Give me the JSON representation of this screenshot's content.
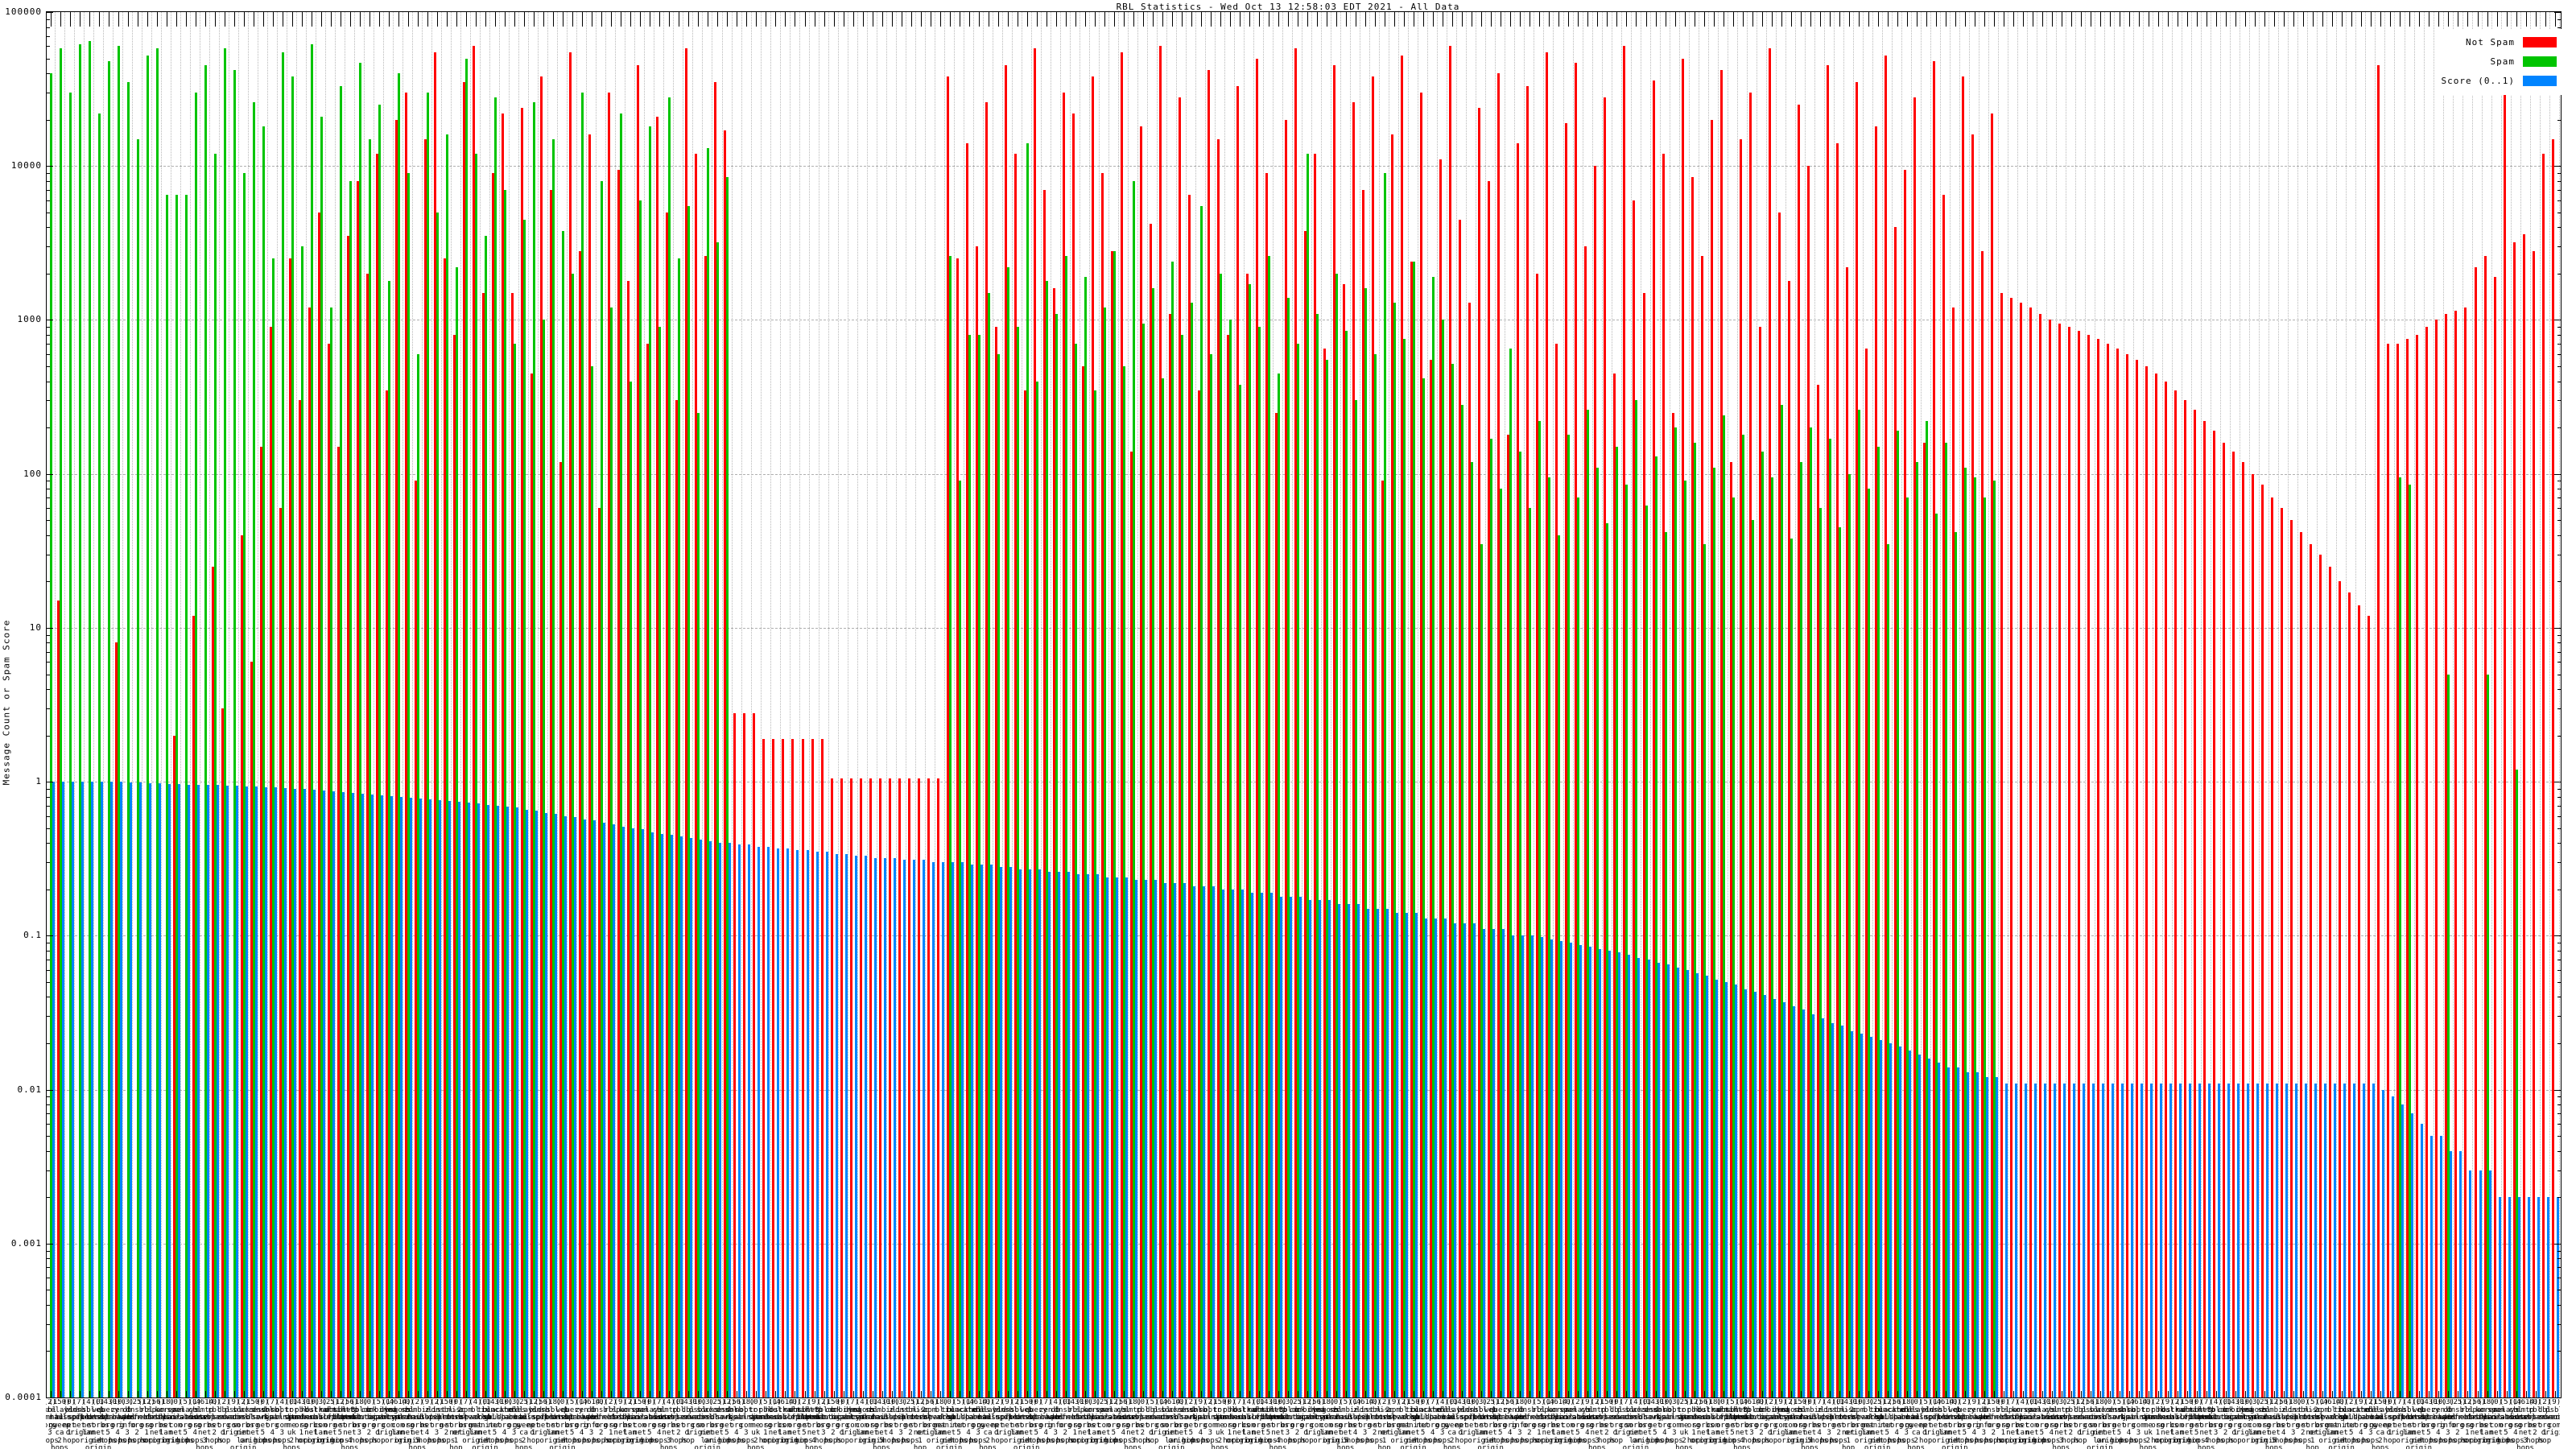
{
  "title": "RBL Statistics - Wed Oct 13 12:58:03 EDT 2021 - All Data",
  "legend": {
    "position": "top-right",
    "entries": [
      {
        "label": "Not Spam",
        "color": "#ff0000"
      },
      {
        "label": "Spam",
        "color": "#00c400"
      },
      {
        "label": "Score (0..1)",
        "color": "#0084ff"
      }
    ]
  },
  "axis": {
    "ylabel": "Message Count or Spam Score",
    "yticks": [
      "100000",
      "10000",
      "1000",
      "100",
      "10",
      "1",
      "0.1",
      "0.01",
      "0.001",
      "0.0001"
    ],
    "ymin": 0.0001,
    "ymax": 100000,
    "yscale": "log",
    "grid": "dotted"
  },
  "chart_data": {
    "type": "bar",
    "title": "RBL Statistics - Wed Oct 13 12:58:03 EDT 2021 - All Data",
    "xlabel": "",
    "ylabel": "Message Count or Spam Score",
    "ylog": true,
    "ylim": [
      0.0001,
      100000
    ],
    "n_groups": 260,
    "legend_position": "top-right",
    "grid": "dotted",
    "series": [
      {
        "name": "Not Spam",
        "color": "#ff0000",
        "values": [
          0,
          15,
          0,
          0,
          0,
          0,
          0,
          8,
          0,
          0,
          0,
          0,
          0,
          2,
          0,
          12,
          0,
          25,
          3,
          0,
          40,
          6,
          150,
          900,
          60,
          2500,
          300,
          1200,
          5000,
          700,
          150,
          3500,
          8000,
          2000,
          12000,
          350,
          20000,
          30000,
          90,
          15000,
          55000,
          2500,
          800,
          35000,
          60000,
          1500,
          9000,
          22000,
          1500,
          24000,
          450,
          38000,
          7000,
          120,
          55000,
          2800,
          16000,
          60,
          30000,
          9500,
          1800,
          45000,
          700,
          21000,
          5000,
          300,
          58000,
          12000,
          2600,
          35000,
          17000,
          2.8,
          2.8,
          2.8,
          1.9,
          1.9,
          1.9,
          1.9,
          1.9,
          1.9,
          1.9,
          1.05,
          1.05,
          1.05,
          1.05,
          1.05,
          1.05,
          1.05,
          1.05,
          1.05,
          1.05,
          1.05,
          1.05,
          38000,
          2500,
          14000,
          3000,
          26000,
          900,
          45000,
          12000,
          350,
          58000,
          7000,
          1600,
          30000,
          22000,
          500,
          38000,
          9000,
          2800,
          55000,
          140,
          18000,
          4200,
          60000,
          1100,
          28000,
          6500,
          350,
          42000,
          15000,
          800,
          33000,
          2000,
          50000,
          9000,
          250,
          20000,
          58000,
          3800,
          12000,
          650,
          45000,
          1700,
          26000,
          7000,
          38000,
          90,
          16000,
          52000,
          2400,
          30000,
          550,
          11000,
          60000,
          4500,
          1300,
          24000,
          8000,
          40000,
          180,
          14000,
          33000,
          2000,
          55000,
          700,
          19000,
          47000,
          3000,
          10000,
          28000,
          450,
          60000,
          6000,
          1500,
          36000,
          12000,
          250,
          50000,
          8500,
          2600,
          20000,
          42000,
          120,
          15000,
          30000,
          900,
          58000,
          5000,
          1800,
          25000,
          10000,
          380,
          45000,
          14000,
          2200,
          35000,
          650,
          18000,
          52000,
          4000,
          9500,
          28000,
          160,
          48000,
          6500,
          1200,
          38000,
          16000,
          2800,
          22000,
          1500,
          1400,
          1300,
          1200,
          1100,
          1000,
          950,
          900,
          850,
          800,
          750,
          700,
          650,
          600,
          550,
          500,
          450,
          400,
          350,
          300,
          260,
          220,
          190,
          160,
          140,
          120,
          100,
          85,
          70,
          60,
          50,
          42,
          35,
          30,
          25,
          20,
          17,
          14,
          12,
          45000,
          700,
          700,
          750,
          800,
          900,
          1000,
          1100,
          1150,
          1200,
          2200,
          2600,
          1900,
          52000,
          3200,
          3600,
          2800,
          12000,
          15000
        ]
      },
      {
        "name": "Spam",
        "color": "#00c400",
        "values": [
          40000,
          58000,
          30000,
          62000,
          65000,
          22000,
          48000,
          60000,
          35000,
          15000,
          52000,
          58000,
          6500,
          6500,
          6500,
          30000,
          45000,
          12000,
          58000,
          42000,
          9000,
          26000,
          18000,
          2500,
          55000,
          38000,
          3000,
          62000,
          21000,
          1200,
          33000,
          8000,
          47000,
          15000,
          25000,
          1800,
          40000,
          9000,
          600,
          30000,
          5000,
          16000,
          2200,
          50000,
          12000,
          3500,
          28000,
          7000,
          700,
          4500,
          26000,
          1000,
          15000,
          3800,
          2000,
          30000,
          500,
          8000,
          1200,
          22000,
          400,
          6000,
          18000,
          900,
          28000,
          2500,
          5500,
          250,
          13000,
          3200,
          8500,
          0,
          0,
          0,
          0,
          0,
          0,
          0,
          0,
          0,
          0,
          0,
          0,
          0,
          0,
          0,
          0,
          0,
          0,
          0,
          0,
          0,
          0,
          2600,
          90,
          800,
          800,
          1500,
          600,
          2200,
          900,
          14000,
          400,
          1800,
          1100,
          2600,
          700,
          1900,
          350,
          1200,
          2800,
          500,
          8000,
          950,
          1600,
          420,
          2400,
          800,
          1300,
          5500,
          600,
          2000,
          1000,
          380,
          1700,
          900,
          2600,
          450,
          1400,
          700,
          12000,
          1100,
          550,
          2000,
          850,
          300,
          1600,
          600,
          9000,
          1300,
          750,
          2400,
          420,
          1900,
          1000,
          520,
          280,
          120,
          35,
          170,
          80,
          650,
          140,
          60,
          220,
          95,
          40,
          180,
          70,
          260,
          110,
          48,
          150,
          85,
          300,
          62,
          130,
          42,
          200,
          90,
          160,
          35,
          110,
          240,
          70,
          180,
          50,
          140,
          95,
          280,
          38,
          120,
          200,
          60,
          170,
          45,
          100,
          260,
          80,
          150,
          35,
          190,
          70,
          120,
          220,
          55,
          160,
          42,
          110,
          95,
          70,
          90,
          0,
          0,
          0,
          0,
          0,
          0,
          0,
          0,
          0,
          0,
          0,
          0,
          0,
          0,
          0,
          0,
          0,
          0,
          0,
          0,
          0,
          0,
          0,
          0,
          0,
          0,
          0,
          0,
          0,
          0,
          0,
          0,
          0,
          0,
          0,
          0,
          0,
          0,
          0,
          0,
          0,
          95,
          85,
          0,
          0,
          0,
          5,
          0,
          0,
          0,
          5,
          0,
          0,
          1.2,
          0,
          0,
          0,
          0
        ]
      },
      {
        "name": "Score (0..1)",
        "color": "#0084ff",
        "values": [
          1,
          1,
          1,
          1,
          1,
          1,
          1,
          1,
          0.99,
          0.99,
          0.98,
          0.98,
          0.97,
          0.97,
          0.96,
          0.96,
          0.95,
          0.95,
          0.94,
          0.94,
          0.93,
          0.93,
          0.92,
          0.92,
          0.91,
          0.9,
          0.9,
          0.89,
          0.88,
          0.87,
          0.86,
          0.85,
          0.84,
          0.83,
          0.82,
          0.81,
          0.8,
          0.79,
          0.78,
          0.77,
          0.76,
          0.75,
          0.74,
          0.73,
          0.72,
          0.71,
          0.7,
          0.69,
          0.68,
          0.66,
          0.65,
          0.63,
          0.62,
          0.6,
          0.59,
          0.57,
          0.56,
          0.54,
          0.53,
          0.51,
          0.5,
          0.49,
          0.47,
          0.46,
          0.45,
          0.44,
          0.43,
          0.42,
          0.41,
          0.4,
          0.4,
          0.39,
          0.39,
          0.38,
          0.38,
          0.37,
          0.37,
          0.36,
          0.36,
          0.35,
          0.35,
          0.34,
          0.34,
          0.33,
          0.33,
          0.32,
          0.32,
          0.32,
          0.31,
          0.31,
          0.31,
          0.3,
          0.3,
          0.3,
          0.3,
          0.29,
          0.29,
          0.29,
          0.28,
          0.28,
          0.27,
          0.27,
          0.27,
          0.26,
          0.26,
          0.26,
          0.25,
          0.25,
          0.25,
          0.24,
          0.24,
          0.24,
          0.23,
          0.23,
          0.23,
          0.22,
          0.22,
          0.22,
          0.21,
          0.21,
          0.21,
          0.2,
          0.2,
          0.2,
          0.19,
          0.19,
          0.19,
          0.18,
          0.18,
          0.18,
          0.17,
          0.17,
          0.17,
          0.16,
          0.16,
          0.16,
          0.15,
          0.15,
          0.15,
          0.14,
          0.14,
          0.14,
          0.13,
          0.13,
          0.13,
          0.12,
          0.12,
          0.12,
          0.11,
          0.11,
          0.11,
          0.1,
          0.1,
          0.1,
          0.098,
          0.095,
          0.092,
          0.09,
          0.087,
          0.085,
          0.082,
          0.08,
          0.078,
          0.075,
          0.072,
          0.07,
          0.067,
          0.065,
          0.062,
          0.06,
          0.057,
          0.055,
          0.052,
          0.05,
          0.048,
          0.045,
          0.043,
          0.041,
          0.039,
          0.037,
          0.035,
          0.033,
          0.031,
          0.029,
          0.027,
          0.026,
          0.024,
          0.023,
          0.022,
          0.021,
          0.02,
          0.019,
          0.018,
          0.017,
          0.016,
          0.015,
          0.014,
          0.014,
          0.013,
          0.013,
          0.012,
          0.012,
          0.011,
          0.011,
          0.011,
          0.011,
          0.011,
          0.011,
          0.011,
          0.011,
          0.011,
          0.011,
          0.011,
          0.011,
          0.011,
          0.011,
          0.011,
          0.011,
          0.011,
          0.011,
          0.011,
          0.011,
          0.011,
          0.011,
          0.011,
          0.011,
          0.011,
          0.011,
          0.011,
          0.011,
          0.011,
          0.011,
          0.011,
          0.011,
          0.011,
          0.011,
          0.011,
          0.011,
          0.011,
          0.011,
          0.011,
          0.01,
          0.009,
          0.008,
          0.007,
          0.006,
          0.005,
          0.005,
          0.004,
          0.004,
          0.003,
          0.003,
          0.003,
          0.002,
          0.002,
          0.002,
          0.002,
          0.002,
          0.002,
          0.002
        ]
      }
    ],
    "xlabel_name_pool": [
      "zen.spamhaus.org",
      "bl.spamcop.net",
      "b.barracudacentral.org",
      "dnsbl.sorbs.net",
      "spam.dnsbl.sorbs.net",
      "xbl.spamhaus.org",
      "sbl.spamhaus.org",
      "pbl.spamhaus.org",
      "cbl.abuseat.org",
      "dnsbl-1.uceprotect.net",
      "dnsbl-2.uceprotect.net",
      "dnsbl-3.uceprotect.net",
      "psbl.surriel.com",
      "db.wpbl.info",
      "ix.dnsbl.manitu.net",
      "combined.njabl.org",
      "dnsbl.njabl.org",
      "korea.services.net",
      "relays.bl.gweep.ca",
      "zombie.dnsbl.sorbs.net",
      "dul.dnsbl.sorbs.net",
      "smtp.dnsbl.sorbs.net",
      "web.dnsbl.sorbs.net",
      "misc.dnsbl.sorbs.net",
      "http.dnsbl.sorbs.net",
      "socks.dnsbl.sorbs.net",
      "dnsbl.dronebl.org",
      "truncate.gbudb.net",
      "dyna.spamrats.com",
      "noptr.spamrats.com",
      "spam.spamrats.com",
      "bl.mailspike.net",
      "z.mailspike.net",
      "hostkarma.junkemailfilter.com",
      "rbl.interserver.net",
      "query.senderbase.org",
      "opm.tornevall.org",
      "netblock.pedantic.org",
      "access.redhawk.org",
      "rbl.efnetrbl.org",
      "blackholes.mail-abuse.org",
      "bogons.cymru.com",
      "tor.dan.me.uk",
      "relays.mail-abuse.org",
      "dnsbl.spfbl.net",
      "list.dsbl.org",
      "multi.surbl.org",
      "dbl.spamhaus.org"
    ],
    "xlabel_suffix_pool": [
      "origin",
      "1 hop",
      "2 hops",
      "3 hops",
      "4 hops",
      "5 hops",
      "net origin",
      "lan origin"
    ],
    "xlabel_count_pool": [
      0,
      2,
      10,
      5,
      150,
      3,
      1,
      0,
      25,
      4614,
      7,
      12,
      0,
      4,
      56,
      2,
      0,
      18,
      9,
      1430
    ]
  }
}
